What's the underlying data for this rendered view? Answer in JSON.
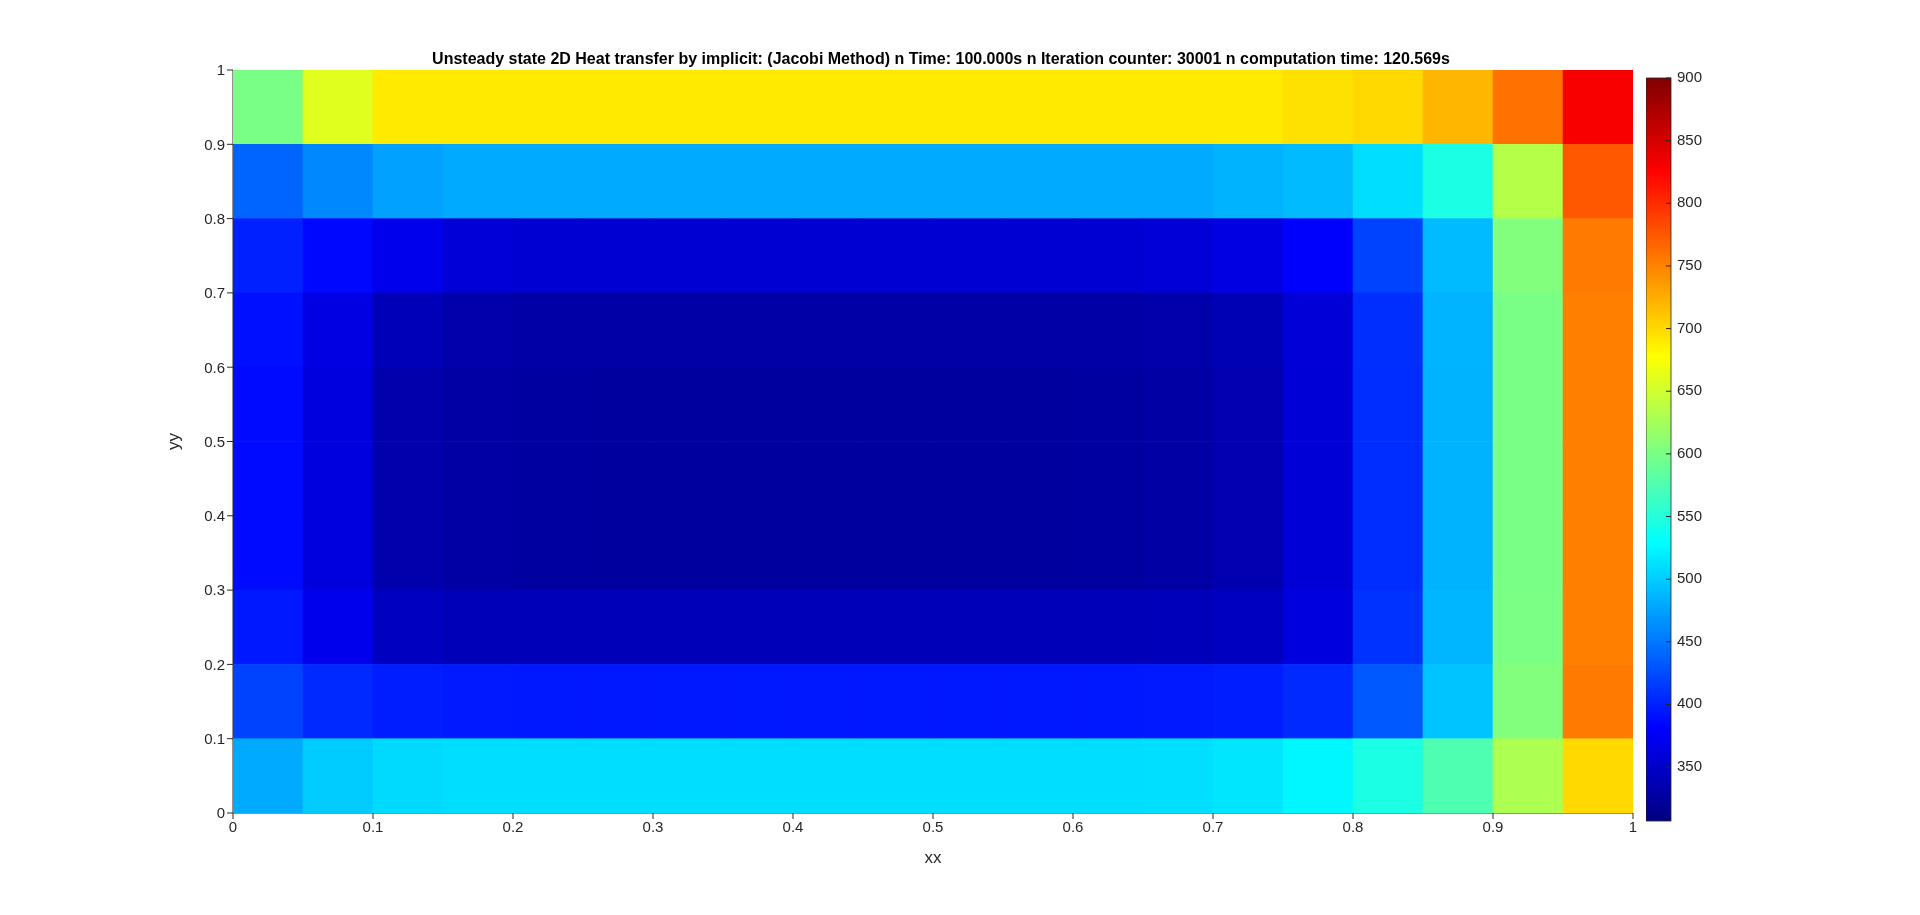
{
  "chart_data": {
    "type": "heatmap",
    "title": "Unsteady state 2D Heat transfer by implicit: (Jacobi Method) n Time: 100.000s n Iteration counter: 30001 n computation time: 120.569s",
    "xlabel": "xx",
    "ylabel": "yy",
    "x": [
      0.025,
      0.075,
      0.125,
      0.175,
      0.225,
      0.275,
      0.325,
      0.375,
      0.425,
      0.475,
      0.525,
      0.575,
      0.625,
      0.675,
      0.725,
      0.775,
      0.825,
      0.875,
      0.925,
      0.975
    ],
    "y": [
      0.95,
      0.85,
      0.75,
      0.65,
      0.55,
      0.45,
      0.35,
      0.25,
      0.15,
      0.05
    ],
    "xlim": [
      0,
      1
    ],
    "xticks": [
      0,
      0.1,
      0.2,
      0.3,
      0.4,
      0.5,
      0.6,
      0.7,
      0.8,
      0.9,
      1
    ],
    "ylim": [
      0,
      1
    ],
    "yticks": [
      0,
      0.1,
      0.2,
      0.3,
      0.4,
      0.5,
      0.6,
      0.7,
      0.8,
      0.9,
      1
    ],
    "clim": [
      307,
      900
    ],
    "cticks": [
      350,
      400,
      450,
      500,
      550,
      600,
      650,
      700,
      750,
      800,
      850,
      900
    ],
    "cells": [
      [
        600,
        660,
        690,
        690,
        690,
        690,
        690,
        690,
        690,
        690,
        690,
        690,
        690,
        690,
        690,
        695,
        700,
        720,
        760,
        830
      ],
      [
        440,
        460,
        475,
        480,
        480,
        480,
        480,
        480,
        480,
        480,
        480,
        480,
        480,
        480,
        485,
        490,
        510,
        545,
        635,
        775
      ],
      [
        400,
        385,
        370,
        358,
        355,
        355,
        355,
        355,
        355,
        355,
        355,
        355,
        355,
        358,
        365,
        380,
        420,
        490,
        605,
        755
      ],
      [
        390,
        365,
        340,
        332,
        330,
        330,
        330,
        330,
        330,
        330,
        330,
        330,
        330,
        332,
        338,
        358,
        408,
        486,
        600,
        752
      ],
      [
        387,
        362,
        333,
        328,
        326,
        325,
        325,
        325,
        325,
        325,
        325,
        325,
        326,
        328,
        335,
        357,
        407,
        485,
        600,
        752
      ],
      [
        387,
        362,
        333,
        328,
        326,
        325,
        325,
        325,
        325,
        325,
        325,
        325,
        326,
        328,
        335,
        357,
        407,
        485,
        600,
        752
      ],
      [
        387,
        362,
        333,
        328,
        326,
        325,
        325,
        325,
        325,
        325,
        325,
        325,
        326,
        328,
        335,
        357,
        407,
        485,
        600,
        752
      ],
      [
        395,
        370,
        345,
        340,
        340,
        340,
        340,
        340,
        340,
        340,
        340,
        340,
        340,
        341,
        345,
        362,
        410,
        487,
        601,
        752
      ],
      [
        420,
        405,
        398,
        396,
        395,
        395,
        395,
        395,
        395,
        395,
        395,
        395,
        395,
        396,
        398,
        405,
        432,
        495,
        605,
        755
      ],
      [
        480,
        500,
        508,
        510,
        510,
        510,
        510,
        510,
        510,
        510,
        510,
        510,
        510,
        511,
        515,
        525,
        545,
        575,
        630,
        700
      ]
    ]
  }
}
